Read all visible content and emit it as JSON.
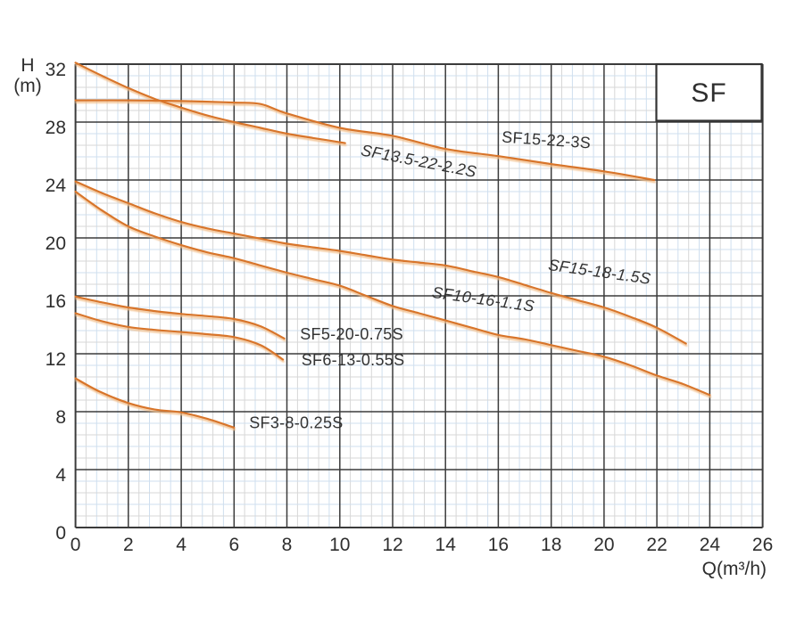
{
  "family_box": {
    "label": "SF"
  },
  "axes": {
    "x": {
      "title": "Q(m³/h)",
      "ticks": [
        0,
        2,
        4,
        6,
        8,
        10,
        12,
        14,
        16,
        18,
        20,
        22,
        24,
        26
      ]
    },
    "y": {
      "title": "H",
      "unit": "(m)",
      "ticks": [
        32,
        28,
        24,
        20,
        16,
        12,
        8,
        4,
        0
      ]
    }
  },
  "colors": {
    "curve": "#d8752a",
    "curve_glow": "#f2bd87",
    "grid_major": "#3b3b3b",
    "grid_minor": "#d7d7d7",
    "grid_minor_blue": "#cfdfef",
    "text": "#2e2e2e",
    "background": "#ffffff"
  },
  "chart_data": {
    "type": "line",
    "title": "SF",
    "xlabel": "Q(m³/h)",
    "ylabel": "H (m)",
    "xlim": [
      0,
      26
    ],
    "ylim": [
      0,
      32
    ],
    "x_major_step": 2,
    "y_major_step": 4,
    "minor_divisions": 5,
    "grid": "on",
    "legend_position": "labels-on-curves",
    "series": [
      {
        "name": "SF13.5-22-2.2S",
        "points": [
          [
            0,
            32.1
          ],
          [
            1,
            31.2
          ],
          [
            2,
            30.35
          ],
          [
            3,
            29.6
          ],
          [
            4,
            29.0
          ],
          [
            5,
            28.45
          ],
          [
            6,
            28.0
          ],
          [
            7,
            27.6
          ],
          [
            8,
            27.2
          ],
          [
            9,
            26.9
          ],
          [
            10.2,
            26.55
          ]
        ],
        "label": {
          "q": 12.95,
          "h": 24.95,
          "rot": 11,
          "italic": true
        }
      },
      {
        "name": "SF15-22-3S",
        "points": [
          [
            0,
            29.5
          ],
          [
            2,
            29.5
          ],
          [
            4,
            29.45
          ],
          [
            6,
            29.35
          ],
          [
            7,
            29.25
          ],
          [
            8,
            28.6
          ],
          [
            10,
            27.6
          ],
          [
            12,
            27.05
          ],
          [
            14,
            26.15
          ],
          [
            16,
            25.65
          ],
          [
            18,
            25.1
          ],
          [
            20,
            24.6
          ],
          [
            21.9,
            24.0
          ]
        ],
        "label": {
          "q": 17.8,
          "h": 26.4,
          "rot": 4,
          "italic": false
        }
      },
      {
        "name": "SF15-18-1.5S",
        "points": [
          [
            0,
            23.9
          ],
          [
            1,
            23.1
          ],
          [
            2,
            22.4
          ],
          [
            3,
            21.7
          ],
          [
            4,
            21.1
          ],
          [
            5,
            20.65
          ],
          [
            6,
            20.3
          ],
          [
            7,
            19.95
          ],
          [
            8,
            19.6
          ],
          [
            9,
            19.35
          ],
          [
            10,
            19.1
          ],
          [
            11,
            18.8
          ],
          [
            12,
            18.5
          ],
          [
            13,
            18.3
          ],
          [
            14,
            18.1
          ],
          [
            15,
            17.7
          ],
          [
            16,
            17.3
          ],
          [
            17,
            16.75
          ],
          [
            18,
            16.2
          ],
          [
            19,
            15.7
          ],
          [
            20,
            15.2
          ],
          [
            21,
            14.55
          ],
          [
            22,
            13.8
          ],
          [
            23.1,
            12.7
          ]
        ],
        "label": {
          "q": 19.8,
          "h": 17.3,
          "rot": 8,
          "italic": true
        }
      },
      {
        "name": "SF10-16-1.1S",
        "points": [
          [
            0,
            23.2
          ],
          [
            1,
            21.9
          ],
          [
            2,
            20.8
          ],
          [
            3,
            20.1
          ],
          [
            4,
            19.5
          ],
          [
            5,
            19.0
          ],
          [
            6,
            18.6
          ],
          [
            7,
            18.1
          ],
          [
            8,
            17.6
          ],
          [
            9,
            17.15
          ],
          [
            10,
            16.7
          ],
          [
            11,
            16.0
          ],
          [
            12,
            15.3
          ],
          [
            13,
            14.8
          ],
          [
            14,
            14.3
          ],
          [
            15,
            13.8
          ],
          [
            16,
            13.3
          ],
          [
            17,
            13.0
          ],
          [
            18,
            12.6
          ],
          [
            19,
            12.2
          ],
          [
            20,
            11.8
          ],
          [
            21,
            11.2
          ],
          [
            22,
            10.5
          ],
          [
            23,
            9.9
          ],
          [
            24,
            9.15
          ]
        ],
        "label": {
          "q": 15.4,
          "h": 15.4,
          "rot": 8,
          "italic": true
        }
      },
      {
        "name": "SF5-20-0.75S",
        "points": [
          [
            0,
            15.95
          ],
          [
            1,
            15.55
          ],
          [
            2,
            15.2
          ],
          [
            3,
            14.95
          ],
          [
            4,
            14.75
          ],
          [
            5,
            14.6
          ],
          [
            6,
            14.4
          ],
          [
            7,
            13.9
          ],
          [
            7.9,
            13.05
          ]
        ],
        "label": {
          "q": 10.45,
          "h": 13.0,
          "rot": 0,
          "italic": false
        }
      },
      {
        "name": "SF6-13-0.55S",
        "points": [
          [
            0,
            14.8
          ],
          [
            1,
            14.25
          ],
          [
            2,
            13.85
          ],
          [
            3,
            13.65
          ],
          [
            4,
            13.5
          ],
          [
            5,
            13.35
          ],
          [
            6,
            13.15
          ],
          [
            7,
            12.6
          ],
          [
            7.85,
            11.6
          ]
        ],
        "label": {
          "q": 10.5,
          "h": 11.2,
          "rot": 0,
          "italic": false
        }
      },
      {
        "name": "SF3-8-0.25S",
        "points": [
          [
            0,
            10.3
          ],
          [
            0.9,
            9.4
          ],
          [
            2,
            8.6
          ],
          [
            3,
            8.15
          ],
          [
            4,
            7.95
          ],
          [
            5,
            7.5
          ],
          [
            6,
            6.9
          ]
        ],
        "label": {
          "q": 8.35,
          "h": 6.85,
          "rot": 0,
          "italic": false
        }
      }
    ]
  }
}
